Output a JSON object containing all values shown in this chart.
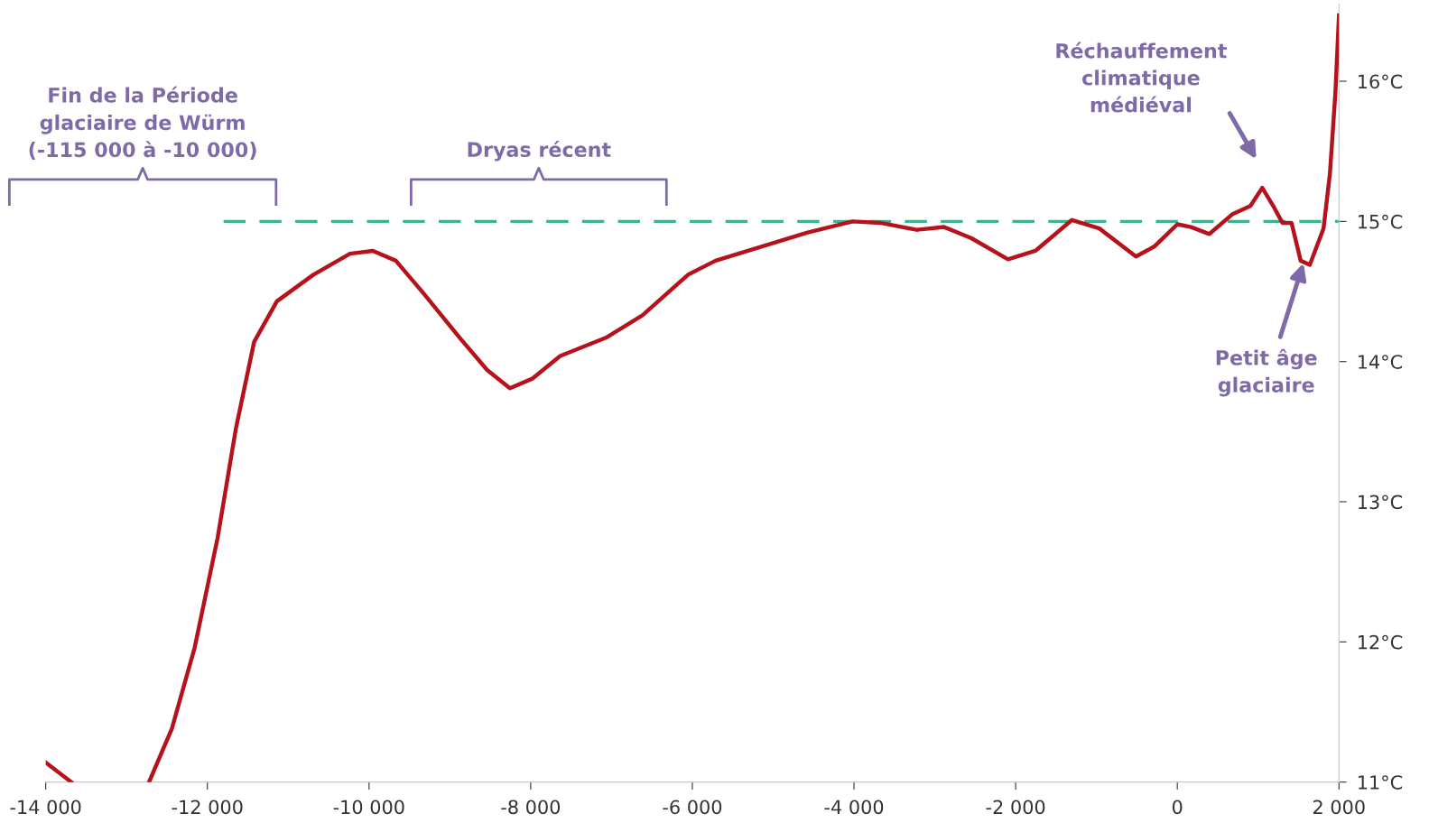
{
  "chart_data": {
    "type": "line",
    "xlim": [
      -14000,
      2000
    ],
    "ylim": [
      11,
      16.55
    ],
    "xticks": [
      {
        "value": -14000,
        "label": "-14 000"
      },
      {
        "value": -12000,
        "label": "-12 000"
      },
      {
        "value": -10000,
        "label": "-10 000"
      },
      {
        "value": -8000,
        "label": "-8 000"
      },
      {
        "value": -6000,
        "label": "-6 000"
      },
      {
        "value": -4000,
        "label": "-4 000"
      },
      {
        "value": -2000,
        "label": "-2 000"
      },
      0,
      {
        "value": 2000,
        "label": "2 000"
      }
    ],
    "yticks": [
      {
        "value": 11,
        "label": "11°C"
      },
      {
        "value": 12,
        "label": "12°C"
      },
      {
        "value": 13,
        "label": "13°C"
      },
      {
        "value": 14,
        "label": "14°C"
      },
      {
        "value": 15,
        "label": "15°C"
      },
      {
        "value": 16,
        "label": "16°C"
      }
    ],
    "grid": false,
    "legend": false,
    "marker": "none",
    "series": [
      {
        "color": "#b5121b",
        "line_style": "solid",
        "x": [
          -14000,
          -13683,
          -13200,
          -12722,
          -12440,
          -12157,
          -11874,
          -11648,
          -11422,
          -11140,
          -10687,
          -10235,
          -9952,
          -9669,
          -9330,
          -8878,
          -8539,
          -8257,
          -7974,
          -7635,
          -7070,
          -6617,
          -6052,
          -5712,
          -5147,
          -4582,
          -4017,
          -3678,
          -3225,
          -2886,
          -2547,
          -2095,
          -1756,
          -1304,
          -965,
          -512,
          -286,
          0,
          170,
          396,
          678,
          904,
          1051,
          1187,
          1300,
          1413,
          1526,
          1639,
          1809,
          1888,
          1956,
          2000
        ],
        "values": [
          11.14,
          11.0,
          null,
          11.0,
          11.38,
          11.96,
          12.74,
          13.52,
          14.14,
          14.43,
          14.62,
          14.77,
          14.79,
          14.72,
          14.49,
          14.17,
          13.94,
          13.81,
          13.88,
          14.04,
          14.17,
          14.33,
          14.62,
          14.72,
          14.82,
          14.92,
          15.0,
          14.99,
          14.94,
          14.96,
          14.88,
          14.73,
          14.79,
          15.01,
          14.95,
          14.75,
          14.82,
          14.98,
          14.96,
          14.91,
          15.05,
          15.11,
          15.24,
          15.11,
          14.99,
          14.99,
          14.72,
          14.69,
          14.95,
          15.34,
          15.92,
          16.47
        ]
      },
      {
        "color": "#3cb38a",
        "line_style": "dashed",
        "x": [
          -11800,
          2000
        ],
        "values": [
          15,
          15
        ]
      }
    ],
    "annotations": [
      "Fin de la Période\nglaciaire de Würm\n(-115 000 à -10 000)",
      "Dryas récent",
      "Réchauffement\nclimatique\nmédiéval",
      {
        "text": "Petit âge\nglaciaire",
        "x": 1600,
        "y": 14.69
      }
    ]
  }
}
